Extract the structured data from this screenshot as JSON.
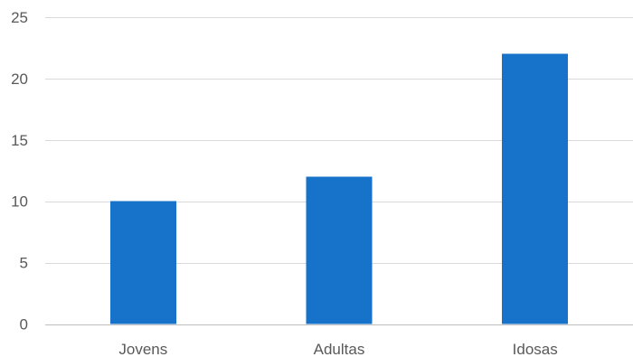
{
  "chart_data": {
    "type": "bar",
    "title": "",
    "xlabel": "",
    "ylabel": "",
    "categories": [
      "Jovens",
      "Adultas",
      "Idosas"
    ],
    "values": [
      10,
      12,
      22
    ],
    "ylim": [
      0,
      25
    ],
    "yticks": [
      0,
      5,
      10,
      15,
      20,
      25
    ],
    "grid": true,
    "legend": "none",
    "bar_color": "#1773c9"
  }
}
